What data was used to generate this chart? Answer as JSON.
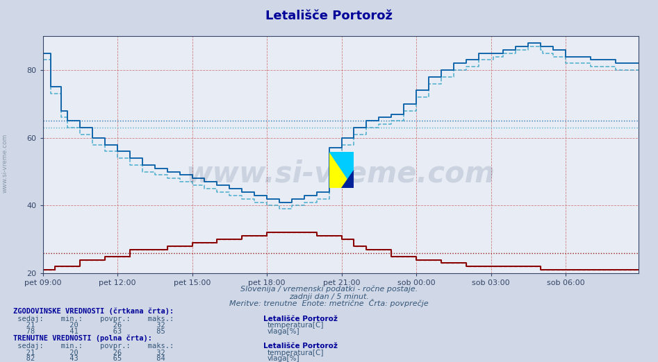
{
  "title": "Letališče Portorož",
  "title_color": "#000099",
  "bg_color": "#d0d8e8",
  "plot_bg_color": "#e8ecf4",
  "x_min": 0,
  "x_max": 287,
  "y_min": 20,
  "y_max": 90,
  "yticks": [
    20,
    40,
    60,
    80
  ],
  "xtick_labels": [
    "pet 09:00",
    "pet 12:00",
    "pet 15:00",
    "pet 18:00",
    "pet 21:00",
    "sob 00:00",
    "sob 03:00",
    "sob 06:00"
  ],
  "xtick_positions": [
    0,
    36,
    72,
    108,
    144,
    180,
    216,
    252
  ],
  "temp_color": "#880000",
  "humidity_color": "#1166aa",
  "humidity_hist_color": "#44aacc",
  "temp_hist_color": "#cc4444",
  "watermark_text": "www.si-vreme.com",
  "footer_line1": "Slovenija / vremenski podatki - ročne postaje.",
  "footer_line2": "zadnji dan / 5 minut.",
  "footer_line3": "Meritve: trenutne  Enote: metrične  Črta: povprečje",
  "legend_title1": "ZGODOVINSKE VREDNOSTI (črtkana črta):",
  "legend_title2": "TRENUTNE VREDNOSTI (polna črta):",
  "legend_station": "Letališče Portorož",
  "temp_stats_hist": [
    21,
    20,
    26,
    32
  ],
  "humid_stats_hist": [
    78,
    41,
    63,
    85
  ],
  "temp_stats_curr": [
    21,
    20,
    26,
    32
  ],
  "humid_stats_curr": [
    82,
    43,
    65,
    84
  ],
  "temp_avg_line": 26,
  "humid_avg_hist_line": 63,
  "humid_avg_curr_line": 65,
  "left_label": "www.si-vreme.com",
  "grid_v_color": "#cc6666",
  "grid_h_color": "#cc6666"
}
